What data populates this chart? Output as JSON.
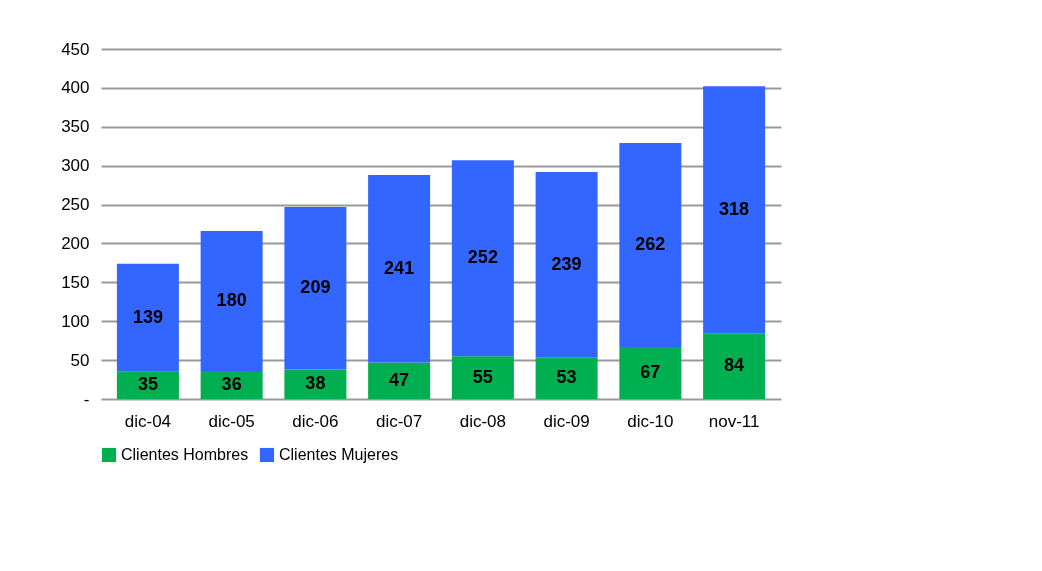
{
  "chart_data": {
    "type": "bar",
    "stacked": true,
    "categories": [
      "dic-04",
      "dic-05",
      "dic-06",
      "dic-07",
      "dic-08",
      "dic-09",
      "dic-10",
      "nov-11"
    ],
    "series": [
      {
        "name": "Clientes Hombres",
        "color": "#00b050",
        "values": [
          35,
          36,
          38,
          47,
          55,
          53,
          67,
          84
        ]
      },
      {
        "name": "Clientes Mujeres",
        "color": "#3366ff",
        "values": [
          139,
          180,
          209,
          241,
          252,
          239,
          262,
          318
        ]
      }
    ],
    "ylim": [
      0,
      450
    ],
    "yticks": [
      {
        "value": 0,
        "label": "-"
      },
      50,
      100,
      150,
      200,
      250,
      300,
      350,
      400,
      450
    ],
    "grid": "y",
    "legend": "bottom",
    "data_labels": true
  }
}
